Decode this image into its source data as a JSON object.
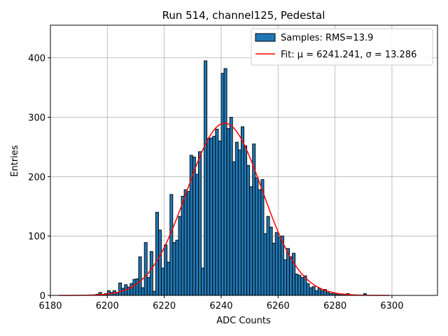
{
  "chart_data": {
    "type": "bar",
    "title": "Run 514, channel125, Pedestal",
    "xlabel": "ADC Counts",
    "ylabel": "Entries",
    "xlim": [
      6180,
      6316
    ],
    "ylim": [
      0,
      455
    ],
    "xticks": [
      6180,
      6200,
      6220,
      6240,
      6260,
      6280,
      6300
    ],
    "yticks": [
      0,
      100,
      200,
      300,
      400
    ],
    "grid": true,
    "legend_position": "top-right",
    "bin_width": 1,
    "series": [
      {
        "name": "Samples: RMS=13.9",
        "kind": "histogram",
        "color": "#1f77b4",
        "edge_color": "#000000",
        "x": [
          6196,
          6197,
          6198,
          6199,
          6200,
          6201,
          6202,
          6203,
          6204,
          6205,
          6206,
          6207,
          6208,
          6209,
          6210,
          6211,
          6212,
          6213,
          6214,
          6215,
          6216,
          6217,
          6218,
          6219,
          6220,
          6221,
          6222,
          6223,
          6224,
          6225,
          6226,
          6227,
          6228,
          6229,
          6230,
          6231,
          6232,
          6233,
          6234,
          6235,
          6236,
          6237,
          6238,
          6239,
          6240,
          6241,
          6242,
          6243,
          6244,
          6245,
          6246,
          6247,
          6248,
          6249,
          6250,
          6251,
          6252,
          6253,
          6254,
          6255,
          6256,
          6257,
          6258,
          6259,
          6260,
          6261,
          6262,
          6263,
          6264,
          6265,
          6266,
          6267,
          6268,
          6269,
          6270,
          6271,
          6272,
          6273,
          6274,
          6275,
          6276,
          6277,
          6278,
          6279,
          6280,
          6281,
          6282,
          6283,
          6284,
          6285,
          6286,
          6290
        ],
        "values": [
          2,
          5,
          1,
          3,
          8,
          5,
          8,
          5,
          21,
          12,
          18,
          14,
          20,
          27,
          28,
          65,
          13,
          89,
          30,
          74,
          7,
          140,
          110,
          46,
          85,
          56,
          170,
          89,
          93,
          133,
          167,
          178,
          175,
          236,
          233,
          204,
          242,
          46,
          395,
          264,
          265,
          268,
          280,
          260,
          374,
          382,
          281,
          300,
          225,
          258,
          245,
          284,
          252,
          219,
          183,
          255,
          198,
          178,
          195,
          104,
          133,
          115,
          88,
          106,
          98,
          100,
          60,
          79,
          65,
          71,
          36,
          34,
          30,
          33,
          20,
          13,
          15,
          8,
          12,
          8,
          10,
          5,
          3,
          4,
          2,
          1,
          2,
          1,
          3,
          1,
          1,
          3
        ]
      },
      {
        "name": "Fit: μ = 6241.241, σ = 13.286",
        "kind": "gaussian",
        "color": "#ff0000",
        "mu": 6241.241,
        "sigma": 13.286,
        "amplitude": 290,
        "x_range": [
          6183,
          6299
        ]
      }
    ]
  }
}
